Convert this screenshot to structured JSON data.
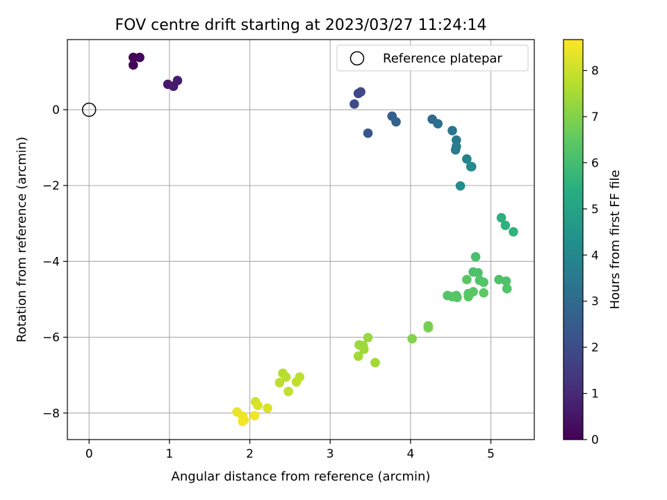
{
  "chart_data": {
    "type": "scatter",
    "title": "FOV centre drift starting at 2023/03/27 11:24:14",
    "xlabel": "Angular distance from reference (arcmin)",
    "ylabel": "Rotation from reference (arcmin)",
    "xlim": [
      -0.27,
      5.54
    ],
    "ylim": [
      -8.7,
      1.85
    ],
    "xticks": [
      0,
      1,
      2,
      3,
      4,
      5
    ],
    "yticks": [
      0,
      -2,
      -4,
      -6,
      -8
    ],
    "grid": true,
    "legend": {
      "position": "top-right",
      "entries": [
        "Reference platepar"
      ]
    },
    "reference_point": {
      "x": 0,
      "y": 0
    },
    "colorbar": {
      "label": "Hours from first FF file",
      "range": [
        0,
        8.67
      ],
      "ticks": [
        0,
        1,
        2,
        3,
        4,
        5,
        6,
        7,
        8
      ],
      "colormap": "viridis"
    },
    "points": [
      {
        "x": 0.55,
        "y": 1.38,
        "h": 0.05
      },
      {
        "x": 0.63,
        "y": 1.38,
        "h": 0.1
      },
      {
        "x": 0.55,
        "y": 1.18,
        "h": 0.15
      },
      {
        "x": 0.98,
        "y": 0.67,
        "h": 0.6
      },
      {
        "x": 1.05,
        "y": 0.62,
        "h": 0.65
      },
      {
        "x": 1.1,
        "y": 0.77,
        "h": 0.7
      },
      {
        "x": 3.35,
        "y": 0.43,
        "h": 1.8
      },
      {
        "x": 3.38,
        "y": 0.47,
        "h": 1.9
      },
      {
        "x": 3.3,
        "y": 0.15,
        "h": 2.0
      },
      {
        "x": 3.47,
        "y": -0.62,
        "h": 2.3
      },
      {
        "x": 3.77,
        "y": -0.17,
        "h": 2.6
      },
      {
        "x": 3.82,
        "y": -0.32,
        "h": 2.7
      },
      {
        "x": 4.27,
        "y": -0.25,
        "h": 3.0
      },
      {
        "x": 4.34,
        "y": -0.37,
        "h": 3.1
      },
      {
        "x": 4.52,
        "y": -0.55,
        "h": 3.3
      },
      {
        "x": 4.57,
        "y": -0.8,
        "h": 3.5
      },
      {
        "x": 4.57,
        "y": -0.97,
        "h": 3.55
      },
      {
        "x": 4.56,
        "y": -1.06,
        "h": 3.6
      },
      {
        "x": 4.7,
        "y": -1.3,
        "h": 3.8
      },
      {
        "x": 4.75,
        "y": -1.5,
        "h": 4.0
      },
      {
        "x": 4.76,
        "y": -1.5,
        "h": 4.05
      },
      {
        "x": 4.62,
        "y": -2.01,
        "h": 4.2
      },
      {
        "x": 5.13,
        "y": -2.85,
        "h": 5.5
      },
      {
        "x": 5.18,
        "y": -3.05,
        "h": 5.55
      },
      {
        "x": 5.28,
        "y": -3.22,
        "h": 5.6
      },
      {
        "x": 4.81,
        "y": -3.88,
        "h": 6.1
      },
      {
        "x": 4.78,
        "y": -4.28,
        "h": 6.15
      },
      {
        "x": 4.84,
        "y": -4.3,
        "h": 6.2
      },
      {
        "x": 4.86,
        "y": -4.5,
        "h": 6.25
      },
      {
        "x": 4.91,
        "y": -4.55,
        "h": 6.3
      },
      {
        "x": 4.7,
        "y": -4.48,
        "h": 6.4
      },
      {
        "x": 5.1,
        "y": -4.48,
        "h": 6.2
      },
      {
        "x": 5.19,
        "y": -4.52,
        "h": 6.2
      },
      {
        "x": 5.2,
        "y": -4.72,
        "h": 6.25
      },
      {
        "x": 4.46,
        "y": -4.9,
        "h": 6.3
      },
      {
        "x": 4.52,
        "y": -4.93,
        "h": 6.3
      },
      {
        "x": 4.57,
        "y": -4.9,
        "h": 6.35
      },
      {
        "x": 4.58,
        "y": -4.95,
        "h": 6.35
      },
      {
        "x": 4.72,
        "y": -4.85,
        "h": 6.35
      },
      {
        "x": 4.72,
        "y": -4.93,
        "h": 6.4
      },
      {
        "x": 4.78,
        "y": -4.8,
        "h": 6.4
      },
      {
        "x": 4.91,
        "y": -4.83,
        "h": 6.45
      },
      {
        "x": 4.22,
        "y": -5.7,
        "h": 6.8
      },
      {
        "x": 4.22,
        "y": -5.75,
        "h": 6.85
      },
      {
        "x": 4.02,
        "y": -6.04,
        "h": 7.0
      },
      {
        "x": 3.47,
        "y": -6.01,
        "h": 7.3
      },
      {
        "x": 3.36,
        "y": -6.2,
        "h": 7.35
      },
      {
        "x": 3.41,
        "y": -6.22,
        "h": 7.35
      },
      {
        "x": 3.42,
        "y": -6.32,
        "h": 7.4
      },
      {
        "x": 3.35,
        "y": -6.5,
        "h": 7.45
      },
      {
        "x": 3.56,
        "y": -6.67,
        "h": 7.45
      },
      {
        "x": 2.41,
        "y": -6.95,
        "h": 7.7
      },
      {
        "x": 2.45,
        "y": -7.05,
        "h": 7.75
      },
      {
        "x": 2.62,
        "y": -7.05,
        "h": 7.8
      },
      {
        "x": 2.37,
        "y": -7.2,
        "h": 7.8
      },
      {
        "x": 2.58,
        "y": -7.18,
        "h": 7.85
      },
      {
        "x": 2.48,
        "y": -7.43,
        "h": 7.9
      },
      {
        "x": 2.07,
        "y": -7.7,
        "h": 8.1
      },
      {
        "x": 2.1,
        "y": -7.8,
        "h": 8.15
      },
      {
        "x": 2.22,
        "y": -7.87,
        "h": 8.2
      },
      {
        "x": 1.84,
        "y": -7.97,
        "h": 8.4
      },
      {
        "x": 1.91,
        "y": -8.08,
        "h": 8.45
      },
      {
        "x": 1.93,
        "y": -8.18,
        "h": 8.5
      },
      {
        "x": 1.91,
        "y": -8.22,
        "h": 8.55
      },
      {
        "x": 2.06,
        "y": -8.07,
        "h": 8.5
      }
    ]
  }
}
